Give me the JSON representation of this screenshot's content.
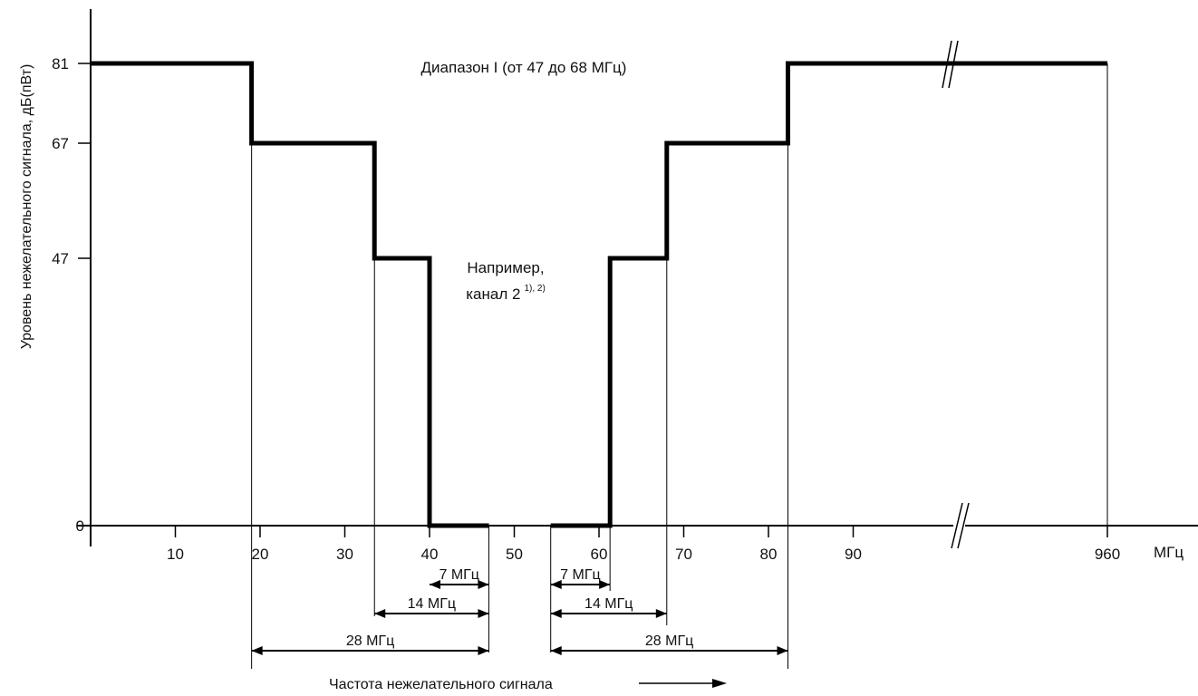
{
  "chart_data": {
    "type": "line",
    "title": "",
    "ylabel": "Уровень нежелательного сигнала, дБ(пВт)",
    "xlabel": "Частота нежелательного сигнала",
    "x_unit": "МГц",
    "y_ticks": [
      "0",
      "47",
      "67",
      "81"
    ],
    "x_ticks": [
      "10",
      "20",
      "30",
      "40",
      "50",
      "60",
      "70",
      "80",
      "90",
      "960"
    ],
    "band_label": "Диапазон I (от 47 до 68 МГц)",
    "example_label_line1": "Например,",
    "example_label_line2": "канал 2",
    "example_footnote": "1), 2)",
    "dimensions": [
      "7 МГц",
      "7 МГц",
      "14 МГц",
      "14 МГц",
      "28 МГц",
      "28 МГц"
    ],
    "series": [
      {
        "x": [
          0,
          19,
          19,
          33.5,
          33.5,
          40,
          40,
          47,
          54.3,
          61.3,
          61.3,
          68,
          68,
          82.3,
          82.3,
          960
        ],
        "y": [
          81,
          81,
          67,
          67,
          47,
          47,
          0,
          0,
          0,
          0,
          47,
          47,
          67,
          67,
          81,
          81
        ]
      }
    ],
    "x_axis_break": true,
    "grid": false
  }
}
